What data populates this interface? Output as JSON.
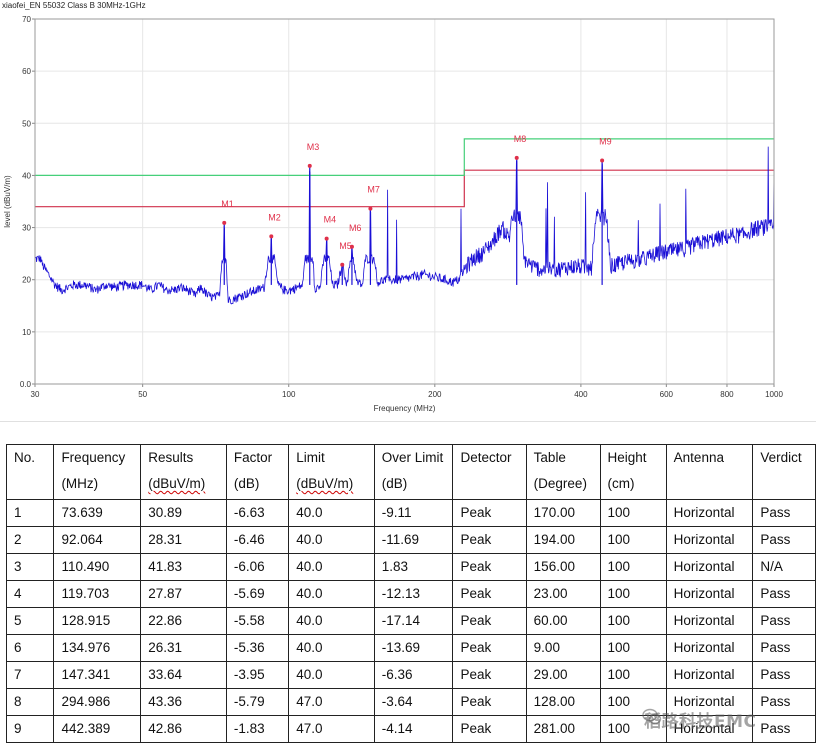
{
  "chart_data": {
    "type": "line",
    "title": "xiaofei_EN 55032 Class B 30MHz-1GHz",
    "xlabel": "Frequency (MHz)",
    "ylabel": "level (dBuV/m)",
    "xscale": "log",
    "xlim": [
      30,
      1000
    ],
    "ylim": [
      0,
      70
    ],
    "x_ticks": [
      30,
      50,
      100,
      200,
      400,
      600,
      800,
      1000
    ],
    "x_tick_labels": [
      "30",
      "50",
      "100",
      "200",
      "400",
      "600",
      "800",
      "1000"
    ],
    "y_ticks": [
      0,
      10,
      20,
      30,
      40,
      50,
      60,
      70
    ],
    "y_tick_labels": [
      "0.0",
      "10",
      "20",
      "30",
      "40",
      "50",
      "60",
      "70"
    ],
    "grid": true,
    "series": [
      {
        "color": "#1a0fd6",
        "x": [
          30,
          30.5,
          31,
          32,
          33,
          34,
          35,
          36,
          38,
          40,
          42,
          44,
          46,
          48,
          50,
          52,
          54,
          56,
          58,
          60,
          62,
          64,
          66,
          68,
          70,
          72,
          73.639,
          75,
          78,
          80,
          83,
          86,
          89,
          92.064,
          95,
          98,
          101,
          104,
          107,
          110.49,
          113,
          116,
          119.703,
          123,
          126,
          128.915,
          132,
          134.976,
          138,
          142,
          147.341,
          152,
          158,
          165,
          172,
          180,
          190,
          200,
          210,
          218,
          224,
          230,
          240,
          250,
          262,
          275,
          285,
          294.986,
          305,
          318,
          330,
          345,
          360,
          380,
          400,
          420,
          442.389,
          460,
          480,
          500,
          540,
          580,
          620,
          660,
          700,
          740,
          780,
          820,
          860,
          900,
          940,
          980,
          1000
        ],
        "y": [
          27,
          28,
          23,
          21,
          19,
          18,
          18.5,
          19,
          19,
          18,
          19,
          18.5,
          19,
          19,
          19,
          18,
          19,
          18,
          18,
          18.5,
          18,
          17,
          18.5,
          17,
          16.5,
          17,
          30.89,
          16,
          16.5,
          17,
          17.5,
          18,
          18.5,
          28.31,
          19,
          18,
          18,
          18.5,
          19,
          41.83,
          18.5,
          18.5,
          27.87,
          19,
          19,
          22.86,
          19,
          26.31,
          19.5,
          19,
          33.64,
          19.5,
          20,
          20,
          20,
          20.5,
          21,
          20.5,
          20,
          19.5,
          20,
          22,
          24,
          25,
          27,
          30,
          28,
          43.36,
          24,
          22.5,
          22,
          22,
          22,
          22.5,
          22.5,
          22,
          42.86,
          22.5,
          23,
          23.5,
          24,
          25,
          25.5,
          26,
          27,
          27.5,
          28,
          28.5,
          28.5,
          29.5,
          30,
          30,
          30
        ]
      }
    ],
    "limit_lines": [
      {
        "name": "limit",
        "color": "#d0314c",
        "segments": [
          [
            30,
            34
          ],
          [
            230,
            34
          ],
          [
            230,
            41
          ],
          [
            1000,
            41
          ]
        ]
      },
      {
        "name": "margin",
        "color": "#46d07a",
        "segments": [
          [
            30,
            40
          ],
          [
            230,
            40
          ],
          [
            230,
            47
          ],
          [
            1000,
            47
          ]
        ]
      }
    ],
    "markers": [
      {
        "label": "M1",
        "x": 73.639,
        "y": 30.89
      },
      {
        "label": "M2",
        "x": 92.064,
        "y": 28.31
      },
      {
        "label": "M3",
        "x": 110.49,
        "y": 41.83
      },
      {
        "label": "M4",
        "x": 119.703,
        "y": 27.87
      },
      {
        "label": "M5",
        "x": 128.915,
        "y": 22.86
      },
      {
        "label": "M6",
        "x": 134.976,
        "y": 26.31
      },
      {
        "label": "M7",
        "x": 147.341,
        "y": 33.64
      },
      {
        "label": "M8",
        "x": 294.986,
        "y": 43.36
      },
      {
        "label": "M9",
        "x": 442.389,
        "y": 42.86
      }
    ]
  },
  "table": {
    "headers": [
      [
        "No.",
        ""
      ],
      [
        "Frequency",
        "(MHz)"
      ],
      [
        "Results",
        "(dBuV/m)"
      ],
      [
        "Factor",
        "(dB)"
      ],
      [
        "Limit",
        "(dBuV/m)"
      ],
      [
        "Over Limit",
        "(dB)"
      ],
      [
        "Detector",
        ""
      ],
      [
        "Table",
        "(Degree)"
      ],
      [
        "Height",
        "(cm)"
      ],
      [
        "Antenna",
        ""
      ],
      [
        "Verdict",
        ""
      ]
    ],
    "rows": [
      [
        "1",
        "73.639",
        "30.89",
        "-6.63",
        "40.0",
        "-9.11",
        "Peak",
        "170.00",
        "100",
        "Horizontal",
        "Pass"
      ],
      [
        "2",
        "92.064",
        "28.31",
        "-6.46",
        "40.0",
        "-11.69",
        "Peak",
        "194.00",
        "100",
        "Horizontal",
        "Pass"
      ],
      [
        "3",
        "110.490",
        "41.83",
        "-6.06",
        "40.0",
        "1.83",
        "Peak",
        "156.00",
        "100",
        "Horizontal",
        "N/A"
      ],
      [
        "4",
        "119.703",
        "27.87",
        "-5.69",
        "40.0",
        "-12.13",
        "Peak",
        "23.00",
        "100",
        "Horizontal",
        "Pass"
      ],
      [
        "5",
        "128.915",
        "22.86",
        "-5.58",
        "40.0",
        "-17.14",
        "Peak",
        "60.00",
        "100",
        "Horizontal",
        "Pass"
      ],
      [
        "6",
        "134.976",
        "26.31",
        "-5.36",
        "40.0",
        "-13.69",
        "Peak",
        "9.00",
        "100",
        "Horizontal",
        "Pass"
      ],
      [
        "7",
        "147.341",
        "33.64",
        "-3.95",
        "40.0",
        "-6.36",
        "Peak",
        "29.00",
        "100",
        "Horizontal",
        "Pass"
      ],
      [
        "8",
        "294.986",
        "43.36",
        "-5.79",
        "47.0",
        "-3.64",
        "Peak",
        "128.00",
        "100",
        "Horizontal",
        "Pass"
      ],
      [
        "9",
        "442.389",
        "42.86",
        "-1.83",
        "47.0",
        "-4.14",
        "Peak",
        "281.00",
        "100",
        "Horizontal",
        "Pass"
      ]
    ]
  },
  "watermark": {
    "text": "稻路科技EMC"
  }
}
